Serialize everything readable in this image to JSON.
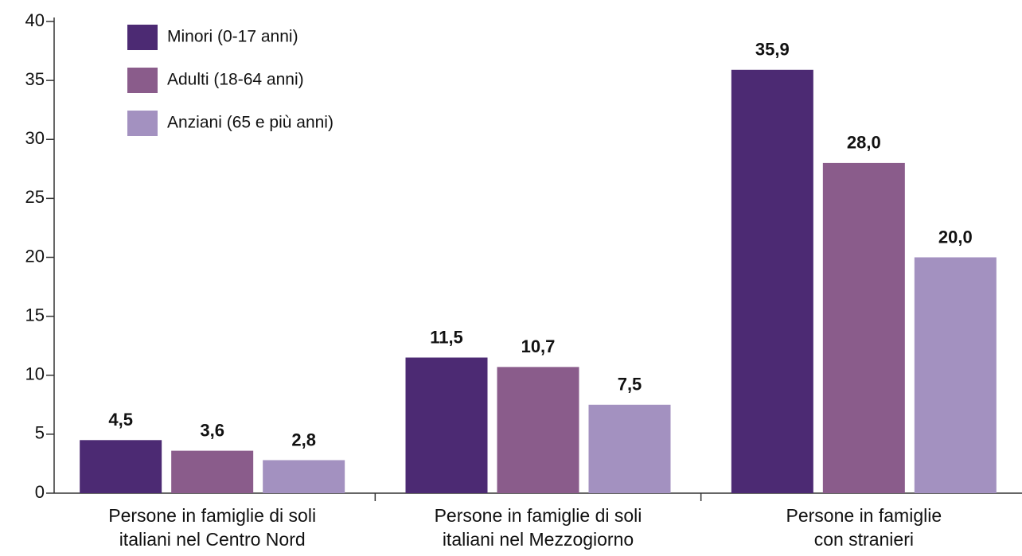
{
  "chart_data": {
    "type": "bar",
    "categories": [
      [
        "Persone in famiglie di soli",
        "italiani nel Centro Nord"
      ],
      [
        "Persone in famiglie di soli",
        "italiani nel Mezzogiorno"
      ],
      [
        "Persone in famiglie",
        "con stranieri"
      ]
    ],
    "series": [
      {
        "name": "Minori (0-17 anni)",
        "color": "#4c2a73",
        "values": [
          4.5,
          11.5,
          35.9
        ],
        "value_labels": [
          "4,5",
          "11,5",
          "35,9"
        ]
      },
      {
        "name": "Adulti (18-64 anni)",
        "color": "#8a5c8b",
        "values": [
          3.6,
          10.7,
          28.0
        ],
        "value_labels": [
          "3,6",
          "10,7",
          "28,0"
        ]
      },
      {
        "name": "Anziani (65 e più anni)",
        "color": "#a391c0",
        "values": [
          2.8,
          7.5,
          20.0
        ],
        "value_labels": [
          "2,8",
          "7,5",
          "20,0"
        ]
      }
    ],
    "ylim": [
      0,
      40
    ],
    "yticks": [
      0,
      5,
      10,
      15,
      20,
      25,
      30,
      35,
      40
    ],
    "grid": false,
    "legend": "top-left"
  }
}
